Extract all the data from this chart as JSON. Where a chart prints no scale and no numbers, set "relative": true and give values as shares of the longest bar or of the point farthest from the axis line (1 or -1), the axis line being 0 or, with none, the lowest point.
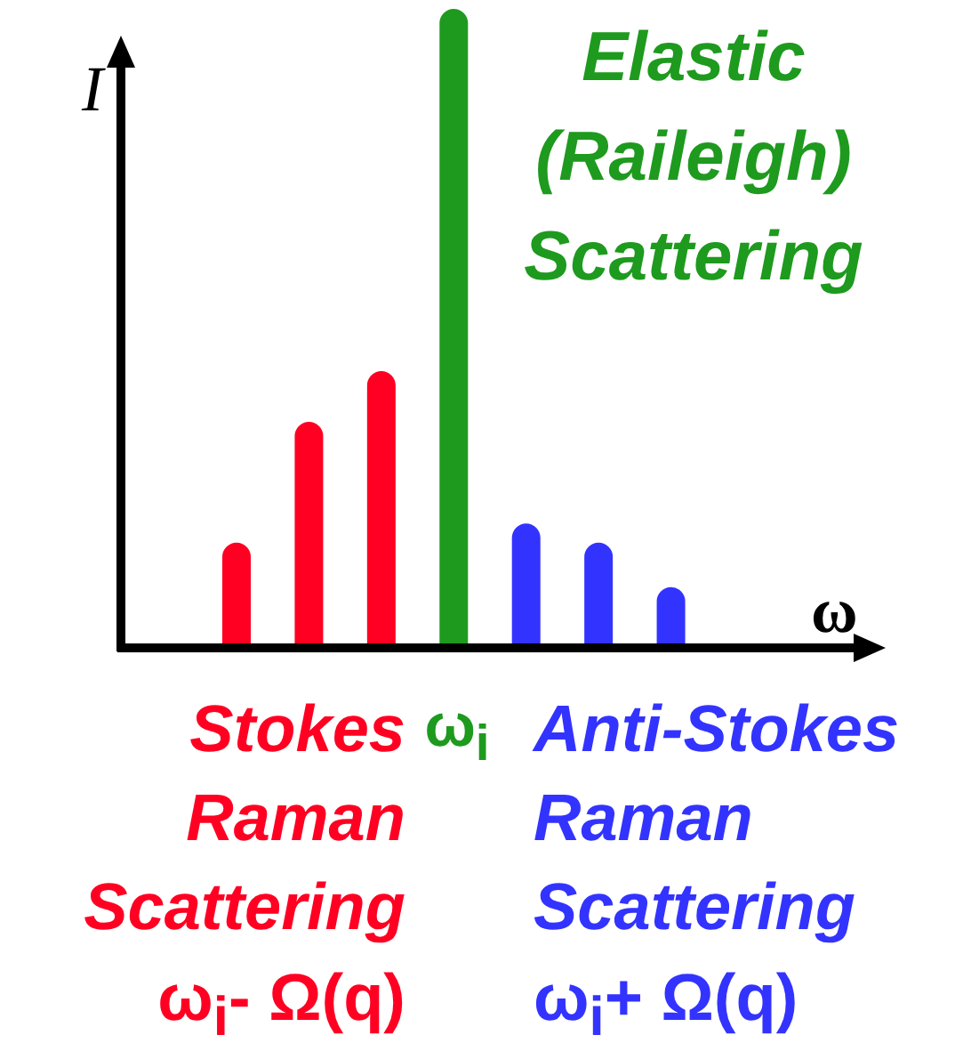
{
  "chart_data": {
    "type": "bar",
    "relative": true,
    "ylabel": "I",
    "xlabel": "ω",
    "categories": [
      null,
      null,
      null,
      null,
      null,
      null,
      null
    ],
    "values": [
      0.16,
      0.35,
      0.43,
      1,
      0.19,
      0.16,
      0.09
    ],
    "colors": [
      "#ff0022",
      "#ff0022",
      "#ff0022",
      "#1e9a1e",
      "#3333ff",
      "#3333ff",
      "#3333ff"
    ],
    "annotations": [
      "Elastic (Raileigh) Scattering",
      "Stokes Raman Scattering",
      "ω$_{i}$",
      "Anti-Stokes Raman Scattering",
      "ω$_{i}$- Ω(q)",
      "ω$_{i}$+ Ω(q)"
    ],
    "legend": false,
    "grid": false
  }
}
